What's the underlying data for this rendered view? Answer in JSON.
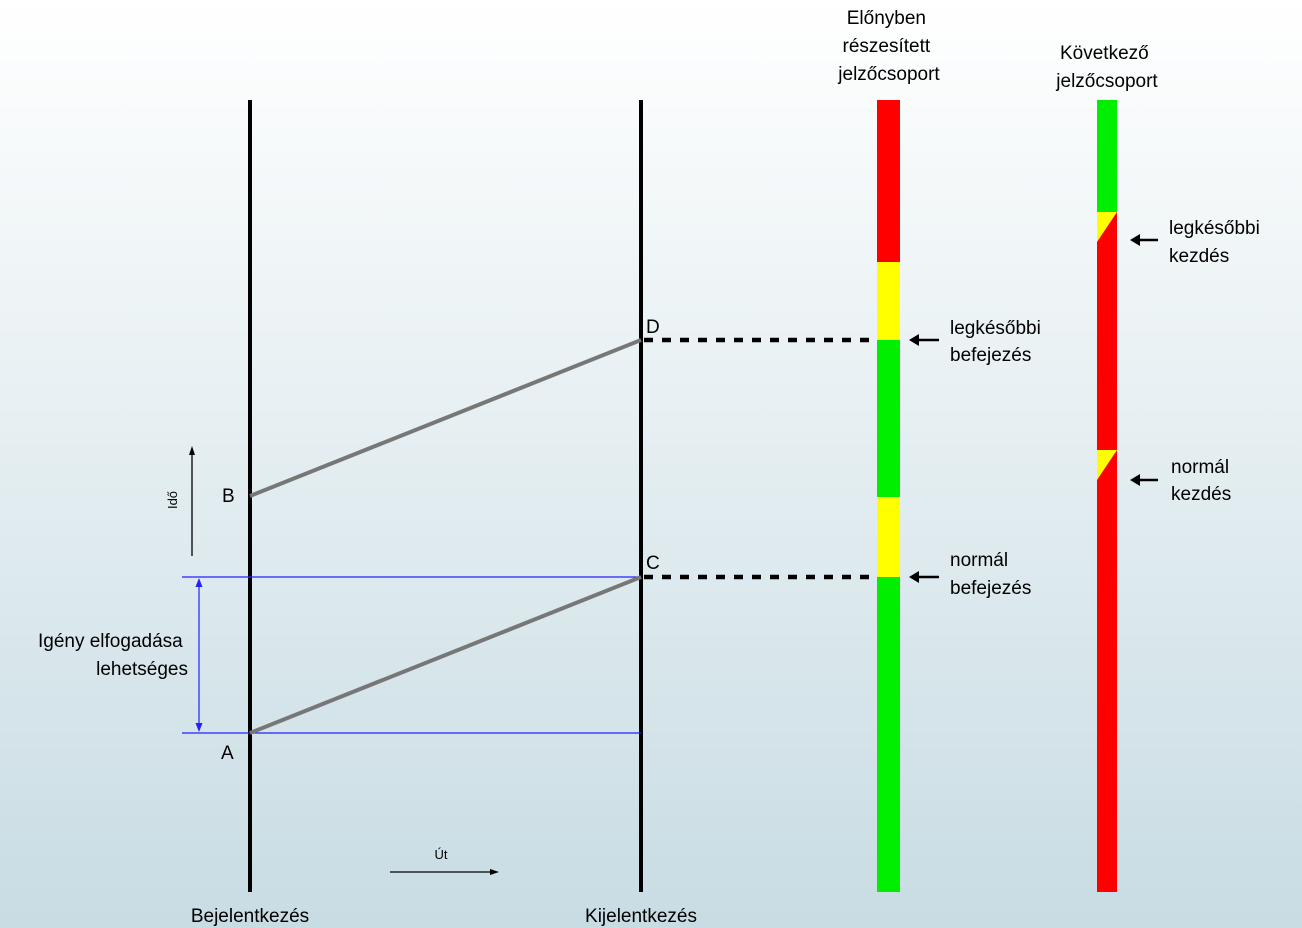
{
  "colors": {
    "background_top": "#ffffff",
    "background_bottom": "#c8dce3",
    "signal_red": "#ff0000",
    "signal_yellow": "#ffff00",
    "signal_green": "#00ee00",
    "bounds_line": "#2222ff",
    "trajectory": "#777777",
    "axis_line": "#000000"
  },
  "labels": {
    "check_in": "Bejelentkezés",
    "check_out": "Kijelentkezés",
    "time_axis": "Idő",
    "path_axis": "Út",
    "request_window": [
      "Igény elfogadása",
      "lehetséges"
    ],
    "point_a": "A",
    "point_b": "B",
    "point_c": "C",
    "point_d": "D"
  },
  "priority_group": {
    "title": [
      "Előnyben",
      "részesített",
      "jelzőcsoport"
    ],
    "latest_end": [
      "legkésőbbi",
      "befejezés"
    ],
    "normal_end": [
      "normál",
      "befejezés"
    ]
  },
  "next_group": {
    "title": [
      "Következő",
      "jelzőcsoport"
    ],
    "latest_start": [
      "legkésőbbi",
      "kezdés"
    ],
    "normal_start": [
      "normál",
      "kezdés"
    ]
  }
}
